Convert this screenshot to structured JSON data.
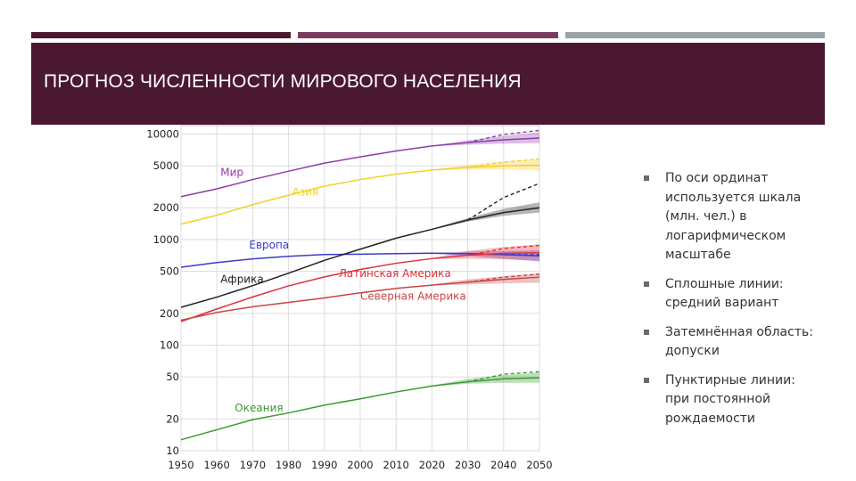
{
  "slide": {
    "title": "ПРОГНОЗ ЧИСЛЕННОСТИ МИРОВОГО НАСЕЛЕНИЯ",
    "bullets": [
      "По оси ординат используется шкала (млн. чел.) в логарифмическом масштабе",
      "Сплошные линии: средний вариант",
      "Затемнённая область: допуски",
      "Пунктирные линии: при постоянной рождаемости"
    ],
    "colors": {
      "header": "#4a1830",
      "stripe_mid": "#7a3b62",
      "stripe_right": "#9aa3a8"
    }
  },
  "chart_data": {
    "type": "line",
    "scale": {
      "y": "log"
    },
    "title": "",
    "xlabel": "",
    "ylabel": "",
    "x": [
      1950,
      1960,
      1970,
      1980,
      1990,
      2000,
      2010,
      2020,
      2030,
      2040,
      2050
    ],
    "xticks": [
      "1950",
      "1960",
      "1970",
      "1980",
      "1990",
      "2000",
      "2010",
      "2020",
      "2030",
      "2040",
      "2050"
    ],
    "yticks": [
      {
        "value": 10,
        "label": "10"
      },
      {
        "value": 20,
        "label": "20"
      },
      {
        "value": 50,
        "label": "50"
      },
      {
        "value": 100,
        "label": "100"
      },
      {
        "value": 200,
        "label": "200"
      },
      {
        "value": 500,
        "label": "500"
      },
      {
        "value": 1000,
        "label": "1000"
      },
      {
        "value": 2000,
        "label": "2000"
      },
      {
        "value": 5000,
        "label": "5000"
      },
      {
        "value": 10000,
        "label": "10000"
      }
    ],
    "xlim": [
      1950,
      2050
    ],
    "ylim": [
      10,
      12000
    ],
    "grid": true,
    "series": [
      {
        "name": "Мир",
        "color": "#8e3cab",
        "values": [
          2550,
          3020,
          3700,
          4440,
          5290,
          6070,
          6900,
          7700,
          8300,
          8800,
          9150
        ],
        "constant": [
          9900,
          10800
        ],
        "band": [
          [
            2020,
            7640,
            7760
          ],
          [
            2030,
            7900,
            8700
          ],
          [
            2040,
            8100,
            9600
          ],
          [
            2050,
            8200,
            10400
          ]
        ]
      },
      {
        "name": "Азия",
        "color": "#f5cf2a",
        "values": [
          1400,
          1700,
          2140,
          2630,
          3200,
          3700,
          4160,
          4550,
          4830,
          5000,
          5050
        ],
        "constant": [
          5400,
          5800
        ],
        "band": [
          [
            2020,
            4510,
            4590
          ],
          [
            2030,
            4600,
            5100
          ],
          [
            2040,
            4600,
            5500
          ],
          [
            2050,
            4500,
            5800
          ]
        ]
      },
      {
        "name": "Европа",
        "color": "#3b3bcc",
        "values": [
          547,
          605,
          656,
          694,
          721,
          727,
          735,
          742,
          735,
          720,
          700
        ],
        "constant": [
          720,
          720
        ],
        "band": [
          [
            2020,
            736,
            748
          ],
          [
            2030,
            700,
            770
          ],
          [
            2040,
            660,
            780
          ],
          [
            2050,
            620,
            790
          ]
        ]
      },
      {
        "name": "Африка",
        "color": "#222222",
        "values": [
          228,
          285,
          366,
          480,
          635,
          810,
          1030,
          1250,
          1530,
          1800,
          2000
        ],
        "constant": [
          2500,
          3400
        ],
        "band": [
          [
            2020,
            1240,
            1260
          ],
          [
            2030,
            1480,
            1600
          ],
          [
            2040,
            1680,
            1950
          ],
          [
            2050,
            1800,
            2250
          ]
        ]
      },
      {
        "name": "Латинская Америка",
        "color": "#e0303a",
        "values": [
          167,
          220,
          286,
          364,
          443,
          521,
          596,
          660,
          710,
          740,
          750
        ],
        "constant": [
          820,
          880
        ],
        "band": [
          [
            2020,
            655,
            668
          ],
          [
            2030,
            660,
            780
          ],
          [
            2040,
            650,
            850
          ],
          [
            2050,
            630,
            900
          ]
        ]
      },
      {
        "name": "Северная Америка",
        "color": "#c84545",
        "values": [
          172,
          204,
          231,
          254,
          280,
          313,
          345,
          370,
          395,
          420,
          440
        ],
        "constant": [
          440,
          470
        ],
        "band": [
          [
            2020,
            366,
            376
          ],
          [
            2030,
            375,
            420
          ],
          [
            2040,
            385,
            450
          ],
          [
            2050,
            390,
            480
          ]
        ]
      },
      {
        "name": "Океания",
        "color": "#3a9a30",
        "values": [
          12.7,
          15.8,
          19.7,
          22.8,
          27,
          31,
          36,
          41,
          45,
          48,
          49
        ],
        "constant": [
          53,
          56
        ],
        "band": [
          [
            2020,
            40.5,
            41.5
          ],
          [
            2030,
            43,
            48
          ],
          [
            2040,
            44,
            52
          ],
          [
            2050,
            44,
            55
          ]
        ]
      }
    ],
    "labels": [
      {
        "text": "Мир",
        "series": 0,
        "x": 1961,
        "y": 4000
      },
      {
        "text": "Азия",
        "series": 1,
        "x": 1981,
        "y": 2600
      },
      {
        "text": "Европа",
        "series": 2,
        "x": 1969,
        "y": 820
      },
      {
        "text": "Африка",
        "series": 3,
        "x": 1961,
        "y": 390
      },
      {
        "text": "Латинская Америка",
        "series": 4,
        "x": 1994,
        "y": 440
      },
      {
        "text": "Северная Америка",
        "series": 5,
        "x": 2000,
        "y": 270
      },
      {
        "text": "Океания",
        "series": 6,
        "x": 1965,
        "y": 23.5
      }
    ]
  }
}
